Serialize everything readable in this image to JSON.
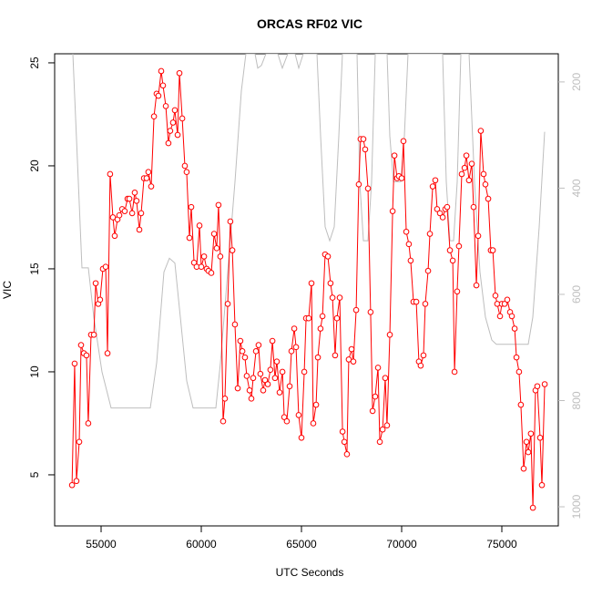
{
  "chart_data": {
    "type": "line",
    "title": "ORCAS RF02 VIC",
    "x_label": "UTC Seconds",
    "y_label": "VIC",
    "xlim": [
      52682,
      77818
    ],
    "xticks": [
      55000,
      60000,
      65000,
      70000,
      75000
    ],
    "ylim": [
      2.52,
      25.44
    ],
    "yticks": [
      5,
      10,
      15,
      20,
      25
    ],
    "y2lim": [
      1036,
      147
    ],
    "y2ticks": [
      200,
      400,
      600,
      800,
      1000
    ],
    "y2_color": "#bebebe",
    "series": [
      {
        "color": "#ff0000",
        "markers": true,
        "x": [
          53550,
          53680,
          53770,
          53910,
          54000,
          54140,
          54270,
          54360,
          54500,
          54640,
          54730,
          54860,
          54950,
          55090,
          55230,
          55320,
          55450,
          55590,
          55680,
          55820,
          55910,
          56050,
          56180,
          56320,
          56410,
          56550,
          56680,
          56770,
          56910,
          57000,
          57140,
          57270,
          57360,
          57500,
          57640,
          57770,
          57860,
          58000,
          58090,
          58230,
          58360,
          58450,
          58590,
          58680,
          58820,
          58910,
          59050,
          59180,
          59270,
          59410,
          59500,
          59640,
          59770,
          59910,
          60000,
          60140,
          60270,
          60360,
          60500,
          60640,
          60770,
          60860,
          60950,
          61090,
          61180,
          61320,
          61450,
          61550,
          61680,
          61820,
          61950,
          62050,
          62180,
          62270,
          62410,
          62500,
          62590,
          62730,
          62860,
          62950,
          63090,
          63180,
          63320,
          63450,
          63550,
          63680,
          63770,
          63910,
          64050,
          64140,
          64270,
          64410,
          64500,
          64640,
          64730,
          64860,
          65000,
          65140,
          65230,
          65360,
          65500,
          65590,
          65730,
          65820,
          65950,
          66050,
          66180,
          66320,
          66450,
          66550,
          66680,
          66770,
          66910,
          67050,
          67140,
          67270,
          67360,
          67500,
          67590,
          67730,
          67860,
          67950,
          68090,
          68180,
          68320,
          68450,
          68550,
          68680,
          68820,
          68910,
          69050,
          69180,
          69270,
          69410,
          69550,
          69640,
          69770,
          69860,
          70000,
          70090,
          70230,
          70360,
          70450,
          70590,
          70730,
          70860,
          70950,
          71090,
          71180,
          71320,
          71410,
          71550,
          71680,
          71770,
          71910,
          72050,
          72180,
          72270,
          72410,
          72550,
          72640,
          72770,
          72860,
          73000,
          73140,
          73230,
          73360,
          73500,
          73590,
          73730,
          73820,
          73950,
          74090,
          74180,
          74320,
          74450,
          74550,
          74680,
          74770,
          74910,
          75000,
          75140,
          75270,
          75410,
          75500,
          75640,
          75730,
          75860,
          75950,
          76090,
          76230,
          76320,
          76450,
          76550,
          76680,
          76770,
          76910,
          77000,
          77140
        ],
        "values": [
          4.5,
          10.4,
          4.7,
          6.6,
          11.3,
          10.9,
          10.8,
          7.5,
          11.8,
          11.8,
          14.3,
          13.3,
          13.5,
          15.0,
          15.1,
          10.9,
          19.6,
          17.5,
          16.6,
          17.4,
          17.6,
          17.9,
          17.8,
          18.4,
          18.4,
          17.7,
          18.7,
          18.3,
          16.9,
          17.7,
          19.4,
          19.4,
          19.7,
          19.0,
          22.4,
          23.5,
          23.4,
          24.6,
          23.9,
          22.9,
          21.1,
          21.7,
          22.1,
          22.7,
          21.5,
          24.5,
          22.3,
          20.0,
          19.7,
          16.5,
          18.0,
          15.3,
          15.1,
          17.1,
          15.1,
          15.6,
          15.0,
          14.9,
          14.8,
          16.7,
          16.0,
          18.1,
          15.6,
          7.6,
          8.7,
          13.3,
          17.3,
          15.9,
          12.3,
          9.2,
          11.5,
          11.0,
          10.7,
          9.8,
          9.1,
          8.7,
          9.7,
          11.0,
          11.3,
          9.9,
          9.1,
          9.6,
          9.4,
          10.1,
          11.5,
          9.7,
          10.5,
          9.0,
          10.0,
          7.8,
          7.6,
          9.3,
          11.0,
          12.1,
          11.2,
          7.9,
          6.8,
          10.0,
          12.6,
          12.6,
          14.3,
          7.5,
          8.4,
          10.7,
          12.1,
          12.7,
          15.7,
          15.6,
          14.3,
          13.6,
          10.8,
          12.6,
          13.6,
          7.1,
          6.6,
          6.0,
          10.6,
          11.1,
          10.5,
          13.0,
          19.1,
          21.3,
          21.3,
          20.8,
          18.9,
          12.9,
          8.1,
          8.8,
          10.2,
          6.6,
          7.2,
          9.7,
          7.4,
          11.8,
          17.8,
          20.5,
          19.4,
          19.5,
          19.4,
          21.2,
          16.8,
          16.2,
          15.4,
          13.4,
          13.4,
          10.5,
          10.3,
          10.8,
          13.3,
          14.9,
          16.7,
          19.0,
          19.3,
          17.9,
          17.7,
          17.5,
          17.9,
          18.0,
          15.9,
          15.4,
          10.0,
          13.9,
          16.1,
          19.6,
          19.9,
          20.5,
          19.3,
          20.1,
          18.0,
          14.2,
          16.6,
          21.7,
          19.6,
          19.1,
          18.4,
          15.9,
          15.9,
          13.7,
          13.3,
          12.7,
          13.3,
          13.3,
          13.5,
          12.9,
          12.7,
          12.1,
          10.7,
          10.0,
          8.4,
          5.3,
          6.6,
          6.1,
          7.0,
          3.4,
          9.1,
          9.3,
          6.8,
          4.5,
          9.4
        ]
      },
      {
        "color": "#bebebe",
        "axis": "y2",
        "markers": false,
        "x": [
          53591,
          53864,
          54045,
          54364,
          54636,
          55045,
          55500,
          57455,
          57773,
          58136,
          58409,
          58682,
          58955,
          59273,
          59591,
          60727,
          60955,
          61318,
          61682,
          62000,
          62227,
          62682,
          62818,
          63000,
          63227,
          63818,
          64045,
          64318,
          64682,
          64864,
          65091,
          65773,
          65955,
          66182,
          66409,
          66636,
          66864,
          67045,
          67773,
          67909,
          68091,
          68318,
          68500,
          68682,
          69273,
          69409,
          69591,
          69955,
          70136,
          70318,
          72045,
          72227,
          72409,
          72591,
          72773,
          72955,
          73364,
          73636,
          73909,
          74182,
          74500,
          74727,
          76318,
          76545,
          76864,
          77136
        ],
        "values": [
          147,
          388,
          550,
          550,
          643,
          746,
          814,
          814,
          729,
          558,
          532,
          541,
          643,
          763,
          814,
          814,
          729,
          558,
          388,
          217,
          147,
          147,
          174,
          169,
          147,
          147,
          174,
          147,
          147,
          174,
          147,
          147,
          302,
          473,
          499,
          473,
          302,
          147,
          147,
          388,
          499,
          499,
          388,
          147,
          147,
          302,
          388,
          388,
          302,
          147,
          147,
          388,
          499,
          499,
          388,
          147,
          147,
          388,
          558,
          643,
          686,
          694,
          694,
          643,
          473,
          294
        ]
      }
    ]
  }
}
